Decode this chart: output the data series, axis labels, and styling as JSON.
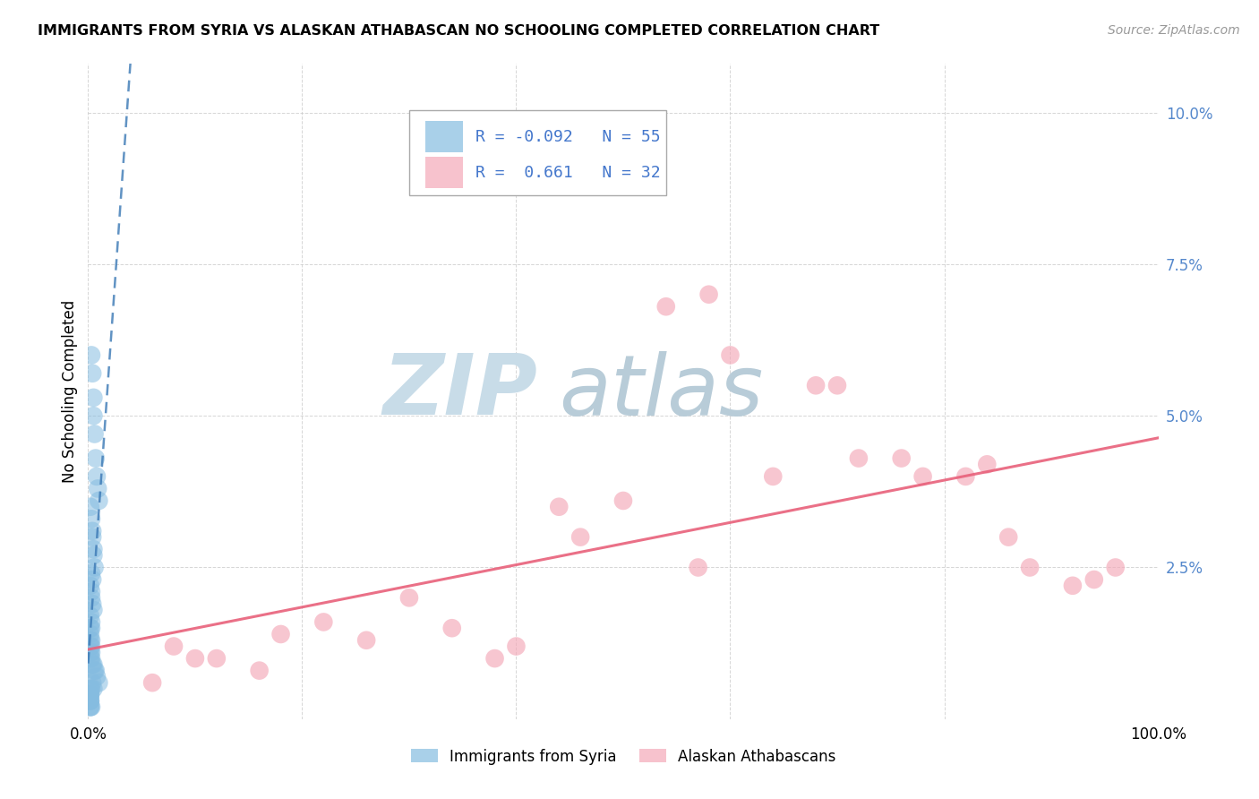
{
  "title": "IMMIGRANTS FROM SYRIA VS ALASKAN ATHABASCAN NO SCHOOLING COMPLETED CORRELATION CHART",
  "source": "Source: ZipAtlas.com",
  "ylabel": "No Schooling Completed",
  "xlim": [
    0.0,
    1.0
  ],
  "ylim": [
    0.0,
    0.108
  ],
  "yticks": [
    0.0,
    0.025,
    0.05,
    0.075,
    0.1
  ],
  "ytick_labels": [
    "",
    "2.5%",
    "5.0%",
    "7.5%",
    "10.0%"
  ],
  "xticks": [
    0.0,
    0.2,
    0.4,
    0.6,
    0.8,
    1.0
  ],
  "xtick_labels": [
    "0.0%",
    "",
    "",
    "",
    "",
    "100.0%"
  ],
  "legend_r1": "-0.092",
  "legend_n1": "55",
  "legend_r2": "0.661",
  "legend_n2": "32",
  "syria_color": "#85bce0",
  "syria_alpha": 0.55,
  "syria_line_color": "#3a78b5",
  "athabascan_color": "#f4a8b8",
  "athabascan_alpha": 0.65,
  "athabascan_line_color": "#e8607a",
  "watermark_zip_color": "#c8dce8",
  "watermark_atlas_color": "#b8ccd8",
  "background": "#ffffff",
  "grid_color": "#cccccc",
  "tick_label_color": "#5588cc",
  "syria_x": [
    0.003,
    0.004,
    0.005,
    0.005,
    0.006,
    0.007,
    0.008,
    0.009,
    0.01,
    0.002,
    0.003,
    0.004,
    0.004,
    0.005,
    0.005,
    0.006,
    0.003,
    0.004,
    0.002,
    0.003,
    0.003,
    0.004,
    0.005,
    0.002,
    0.003,
    0.003,
    0.002,
    0.002,
    0.003,
    0.002,
    0.002,
    0.003,
    0.002,
    0.003,
    0.002,
    0.003,
    0.004,
    0.005,
    0.006,
    0.007,
    0.008,
    0.01,
    0.004,
    0.005,
    0.002,
    0.003,
    0.002,
    0.002,
    0.002,
    0.002,
    0.002,
    0.002,
    0.002,
    0.002,
    0.003
  ],
  "syria_y": [
    0.06,
    0.057,
    0.053,
    0.05,
    0.047,
    0.043,
    0.04,
    0.038,
    0.036,
    0.035,
    0.033,
    0.031,
    0.03,
    0.028,
    0.027,
    0.025,
    0.024,
    0.023,
    0.022,
    0.021,
    0.02,
    0.019,
    0.018,
    0.017,
    0.016,
    0.015,
    0.015,
    0.014,
    0.013,
    0.013,
    0.012,
    0.012,
    0.011,
    0.011,
    0.01,
    0.01,
    0.009,
    0.009,
    0.008,
    0.008,
    0.007,
    0.006,
    0.006,
    0.005,
    0.005,
    0.005,
    0.004,
    0.004,
    0.004,
    0.003,
    0.003,
    0.003,
    0.002,
    0.002,
    0.002
  ],
  "athabascan_x": [
    0.44,
    0.08,
    0.12,
    0.16,
    0.06,
    0.1,
    0.18,
    0.22,
    0.26,
    0.5,
    0.57,
    0.64,
    0.7,
    0.76,
    0.82,
    0.88,
    0.94,
    0.54,
    0.4,
    0.46,
    0.6,
    0.72,
    0.84,
    0.96,
    0.3,
    0.34,
    0.38,
    0.58,
    0.68,
    0.78,
    0.86,
    0.92
  ],
  "athabascan_y": [
    0.035,
    0.012,
    0.01,
    0.008,
    0.006,
    0.01,
    0.014,
    0.016,
    0.013,
    0.036,
    0.025,
    0.04,
    0.055,
    0.043,
    0.04,
    0.025,
    0.023,
    0.068,
    0.012,
    0.03,
    0.06,
    0.043,
    0.042,
    0.025,
    0.02,
    0.015,
    0.01,
    0.07,
    0.055,
    0.04,
    0.03,
    0.022
  ]
}
